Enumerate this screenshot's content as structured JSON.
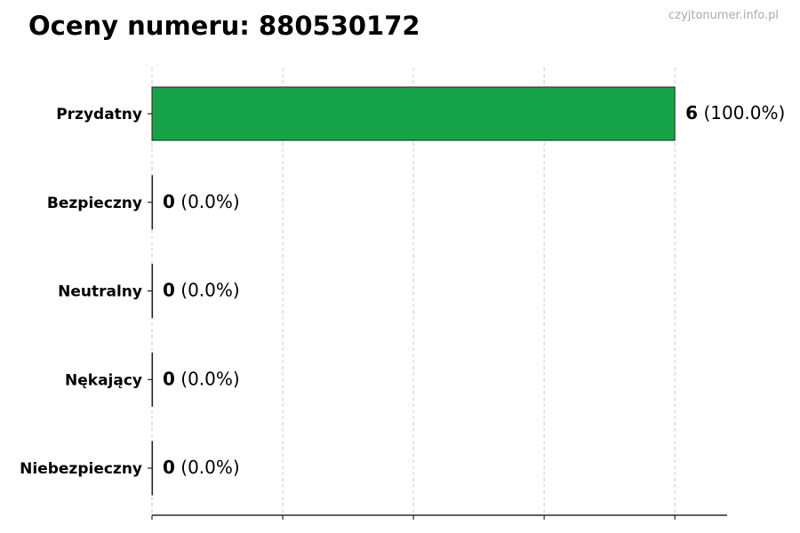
{
  "chart_data": {
    "type": "bar",
    "orientation": "horizontal",
    "title": "Oceny numeru: 880530172",
    "watermark": "czyjtonumer.info.pl",
    "categories": [
      "Przydatny",
      "Bezpieczny",
      "Neutralny",
      "Nękający",
      "Niebezpieczny"
    ],
    "values": [
      6,
      0,
      0,
      0,
      0
    ],
    "percent_labels": [
      "(100.0%)",
      "(0.0%)",
      "(0.0%)",
      "(0.0%)",
      "(0.0%)"
    ],
    "xlim": [
      0,
      6.6
    ],
    "xticks": [
      0,
      1.5,
      3,
      4.5,
      6
    ],
    "xtick_labels_shown": false,
    "grid": "x-dashed",
    "bar_color": "#17a448",
    "xlabel": "",
    "ylabel": ""
  }
}
